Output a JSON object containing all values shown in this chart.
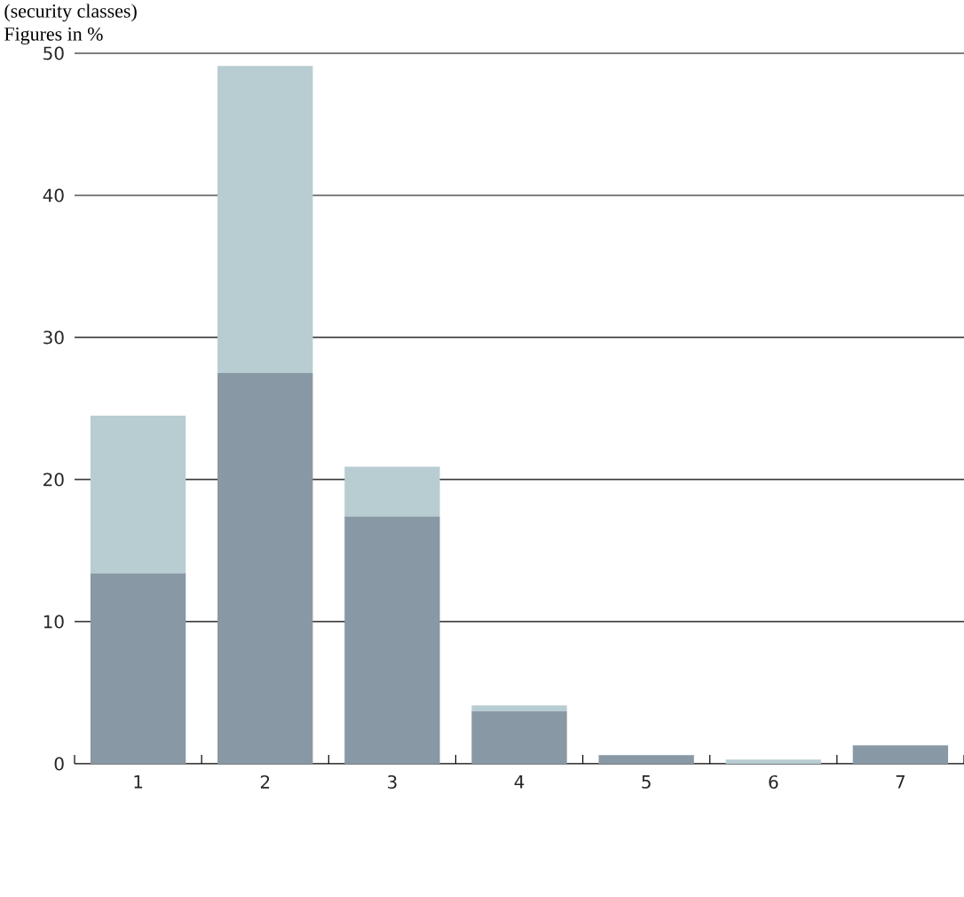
{
  "chart_data": {
    "type": "bar",
    "title": "(security classes)",
    "subtitle": "Figures in %",
    "stacked": true,
    "grid": "y",
    "categories": [
      "1",
      "2",
      "3",
      "4",
      "5",
      "6",
      "7"
    ],
    "series": [
      {
        "color": "#8898a4",
        "values": [
          13.4,
          27.5,
          17.4,
          3.7,
          0.6,
          0,
          1.3
        ]
      },
      {
        "color": "#b8cdd2",
        "values": [
          11.1,
          21.6,
          3.5,
          0.4,
          0,
          0.3,
          0
        ]
      }
    ],
    "ylim": [
      0,
      50
    ],
    "yticks": [
      0,
      10,
      20,
      30,
      40,
      50
    ]
  }
}
